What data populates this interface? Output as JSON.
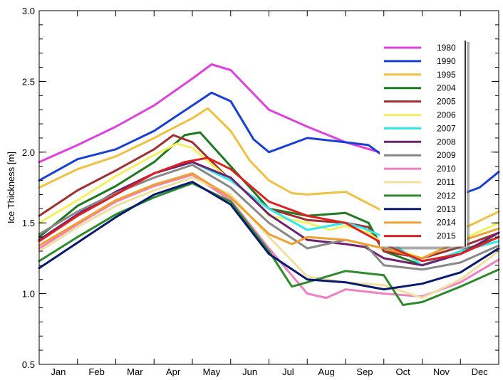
{
  "chart_data": {
    "type": "line",
    "title": "",
    "xlabel": "",
    "ylabel": "Ice Thickness  [m]",
    "xlim": [
      0,
      12
    ],
    "ylim": [
      0.5,
      3.0
    ],
    "x_categories": [
      "Jan",
      "Feb",
      "Mar",
      "Apr",
      "May",
      "Jun",
      "Jul",
      "Aug",
      "Sep",
      "Oct",
      "Nov",
      "Dec"
    ],
    "y_ticks": [
      "0.5",
      "1.0",
      "1.5",
      "2.0",
      "2.5",
      "3.0"
    ],
    "grid": false,
    "legend_position": "right",
    "series": [
      {
        "name": "1980",
        "color": "#e040e0",
        "x": [
          0,
          1,
          2,
          3,
          4,
          4.5,
          5,
          6,
          7,
          8,
          8.5,
          9
        ],
        "y": [
          1.93,
          2.05,
          2.18,
          2.33,
          2.52,
          2.62,
          2.58,
          2.3,
          2.18,
          2.07,
          2.03,
          1.99
        ]
      },
      {
        "name": "1990",
        "color": "#1a3fd6",
        "x": [
          0,
          1,
          2,
          3,
          4,
          4.5,
          5,
          5.6,
          6,
          7,
          8,
          8.6,
          9,
          9.6,
          10,
          10.8,
          11,
          11.5,
          12
        ],
        "y": [
          1.8,
          1.95,
          2.02,
          2.15,
          2.33,
          2.42,
          2.36,
          2.09,
          2.0,
          2.1,
          2.07,
          2.05,
          1.97,
          1.8,
          1.7,
          1.67,
          1.7,
          1.75,
          1.86
        ]
      },
      {
        "name": "1995",
        "color": "#f0c040",
        "x": [
          0,
          1,
          2,
          3,
          4,
          4.4,
          5,
          5.5,
          6,
          6.6,
          7,
          8,
          8.5,
          9,
          10,
          11,
          12
        ],
        "y": [
          1.75,
          1.88,
          1.97,
          2.1,
          2.24,
          2.31,
          2.15,
          1.94,
          1.8,
          1.71,
          1.7,
          1.72,
          1.65,
          1.58,
          1.43,
          1.45,
          1.58
        ]
      },
      {
        "name": "2004",
        "color": "#1f7a1f",
        "x": [
          0,
          1,
          2,
          3,
          3.8,
          4.2,
          5,
          6,
          7,
          8,
          8.6,
          9,
          10,
          11,
          12
        ],
        "y": [
          1.4,
          1.62,
          1.76,
          1.93,
          2.12,
          2.14,
          1.9,
          1.6,
          1.55,
          1.57,
          1.5,
          1.3,
          1.2,
          1.3,
          1.4
        ]
      },
      {
        "name": "2005",
        "color": "#a03030",
        "x": [
          0,
          1,
          2,
          3,
          3.5,
          4,
          5,
          6,
          7,
          8,
          8.6,
          9,
          10,
          11,
          12
        ],
        "y": [
          1.55,
          1.73,
          1.87,
          2.02,
          2.12,
          2.07,
          1.8,
          1.6,
          1.52,
          1.5,
          1.47,
          1.3,
          1.25,
          1.33,
          1.43
        ]
      },
      {
        "name": "2006",
        "color": "#f5f060",
        "x": [
          0,
          1,
          2,
          3,
          3.6,
          4,
          5,
          5.6,
          6,
          7,
          7.6,
          8,
          8.6,
          9,
          10,
          11,
          12
        ],
        "y": [
          1.5,
          1.66,
          1.83,
          1.98,
          2.06,
          2.03,
          1.8,
          1.68,
          1.55,
          1.5,
          1.45,
          1.48,
          1.43,
          1.35,
          1.25,
          1.38,
          1.5
        ]
      },
      {
        "name": "2007",
        "color": "#30e8e8",
        "x": [
          0,
          1,
          2,
          3,
          4,
          5,
          6,
          7,
          8,
          8.5,
          9,
          10,
          11,
          12
        ],
        "y": [
          1.38,
          1.56,
          1.7,
          1.85,
          1.93,
          1.8,
          1.6,
          1.45,
          1.5,
          1.46,
          1.4,
          1.2,
          1.3,
          1.37
        ]
      },
      {
        "name": "2008",
        "color": "#702070",
        "x": [
          0,
          1,
          2,
          3,
          4,
          5,
          6,
          7,
          8,
          8.5,
          9,
          10,
          11,
          12
        ],
        "y": [
          1.38,
          1.56,
          1.72,
          1.85,
          1.93,
          1.82,
          1.56,
          1.38,
          1.35,
          1.33,
          1.25,
          1.2,
          1.28,
          1.43
        ]
      },
      {
        "name": "2009",
        "color": "#888888",
        "x": [
          0,
          1,
          2,
          3,
          4,
          5,
          6,
          7,
          8,
          8.5,
          9,
          10,
          11,
          12
        ],
        "y": [
          1.42,
          1.58,
          1.71,
          1.82,
          1.91,
          1.75,
          1.5,
          1.32,
          1.38,
          1.35,
          1.2,
          1.17,
          1.22,
          1.34
        ]
      },
      {
        "name": "2010",
        "color": "#f080c0",
        "x": [
          0,
          1,
          2,
          3,
          4,
          5,
          6,
          7,
          7.5,
          8,
          9,
          10,
          11,
          12
        ],
        "y": [
          1.32,
          1.49,
          1.65,
          1.76,
          1.84,
          1.66,
          1.32,
          1.0,
          0.97,
          1.03,
          1.0,
          0.98,
          1.08,
          1.24
        ]
      },
      {
        "name": "2011",
        "color": "#f0e0a0",
        "x": [
          0,
          1,
          2,
          3,
          4,
          5,
          6,
          7,
          8,
          9,
          10,
          11,
          12
        ],
        "y": [
          1.3,
          1.47,
          1.62,
          1.73,
          1.82,
          1.7,
          1.4,
          1.12,
          1.08,
          1.06,
          0.97,
          1.1,
          1.3
        ]
      },
      {
        "name": "2012",
        "color": "#2d8b2d",
        "x": [
          0,
          1,
          2,
          3,
          4,
          5,
          6,
          6.6,
          7,
          8,
          9,
          9.5,
          10,
          11,
          12
        ],
        "y": [
          1.23,
          1.4,
          1.56,
          1.68,
          1.78,
          1.65,
          1.3,
          1.05,
          1.08,
          1.16,
          1.13,
          0.92,
          0.94,
          1.05,
          1.17
        ]
      },
      {
        "name": "2013",
        "color": "#0a1a6e",
        "x": [
          0,
          1,
          2,
          3,
          4,
          5,
          6,
          7,
          8,
          9,
          10,
          11,
          12
        ],
        "y": [
          1.18,
          1.36,
          1.54,
          1.7,
          1.79,
          1.63,
          1.28,
          1.1,
          1.08,
          1.03,
          1.07,
          1.15,
          1.32
        ]
      },
      {
        "name": "2014",
        "color": "#f0a030",
        "x": [
          0,
          1,
          2,
          3,
          4,
          5,
          6,
          6.6,
          7,
          8,
          9,
          10,
          11,
          12
        ],
        "y": [
          1.34,
          1.5,
          1.66,
          1.77,
          1.85,
          1.68,
          1.42,
          1.35,
          1.4,
          1.38,
          1.32,
          1.25,
          1.37,
          1.46
        ]
      },
      {
        "name": "2015",
        "color": "#e02020",
        "x": [
          0,
          1,
          2,
          3,
          3.8,
          4.4,
          5,
          6,
          7,
          8,
          9,
          10,
          11,
          12
        ],
        "y": [
          1.37,
          1.55,
          1.7,
          1.85,
          1.93,
          1.96,
          1.88,
          1.65,
          1.55,
          1.5,
          1.35,
          1.23,
          1.28,
          1.4
        ]
      }
    ]
  }
}
